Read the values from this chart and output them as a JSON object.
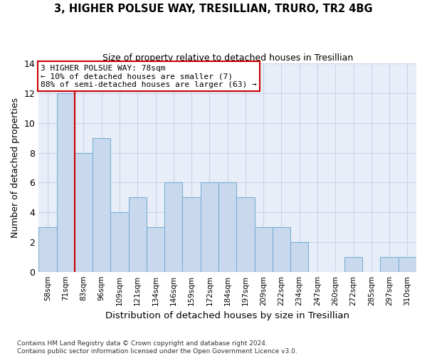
{
  "title1": "3, HIGHER POLSUE WAY, TRESILLIAN, TRURO, TR2 4BG",
  "title2": "Size of property relative to detached houses in Tresillian",
  "xlabel": "Distribution of detached houses by size in Tresillian",
  "ylabel": "Number of detached properties",
  "bar_labels": [
    "58sqm",
    "71sqm",
    "83sqm",
    "96sqm",
    "109sqm",
    "121sqm",
    "134sqm",
    "146sqm",
    "159sqm",
    "172sqm",
    "184sqm",
    "197sqm",
    "209sqm",
    "222sqm",
    "234sqm",
    "247sqm",
    "260sqm",
    "272sqm",
    "285sqm",
    "297sqm",
    "310sqm"
  ],
  "bar_values": [
    3,
    12,
    8,
    9,
    4,
    5,
    3,
    6,
    5,
    6,
    6,
    5,
    3,
    3,
    2,
    0,
    0,
    1,
    0,
    1,
    1
  ],
  "bar_color": "#c9d9ed",
  "bar_edge_color": "#7aafd4",
  "grid_color": "#c8d4e8",
  "background_color": "#e8eef8",
  "red_line_x": 1.5,
  "annotation_line1": "3 HIGHER POLSUE WAY: 78sqm",
  "annotation_line2": "← 10% of detached houses are smaller (7)",
  "annotation_line3": "88% of semi-detached houses are larger (63) →",
  "annotation_box_color": "#ffffff",
  "annotation_box_edge": "#cc0000",
  "footnote": "Contains HM Land Registry data © Crown copyright and database right 2024.\nContains public sector information licensed under the Open Government Licence v3.0.",
  "ylim": [
    0,
    14
  ],
  "yticks": [
    0,
    2,
    4,
    6,
    8,
    10,
    12,
    14
  ]
}
